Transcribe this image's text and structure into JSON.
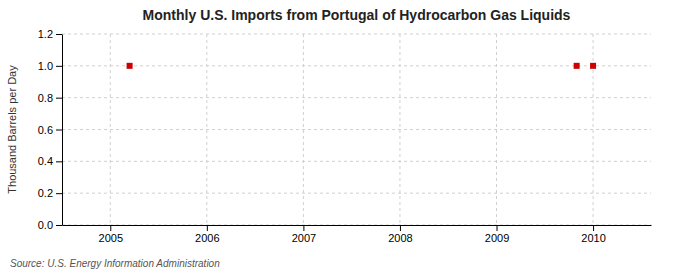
{
  "chart_data": {
    "type": "scatter",
    "title": "Monthly U.S. Imports from Portugal of Hydrocarbon Gas Liquids",
    "ylabel": "Thousand Barrels per Day",
    "annotation": "Source: U.S. Energy Information Administration",
    "x": [
      2005.2,
      2009.83,
      2010.0
    ],
    "values": [
      1.0,
      1.0,
      1.0
    ],
    "color": "#cc0000",
    "marker": "square",
    "xlim": [
      2004.5,
      2010.6
    ],
    "ylim": [
      0.0,
      1.2
    ],
    "xticks": [
      2005,
      2006,
      2007,
      2008,
      2009,
      2010
    ],
    "yticks": [
      {
        "value": 0.0,
        "label": "0.0"
      },
      0.2,
      0.4,
      0.6,
      0.8,
      {
        "value": 1.0,
        "label": "1.0"
      },
      1.2
    ],
    "grid": true
  }
}
